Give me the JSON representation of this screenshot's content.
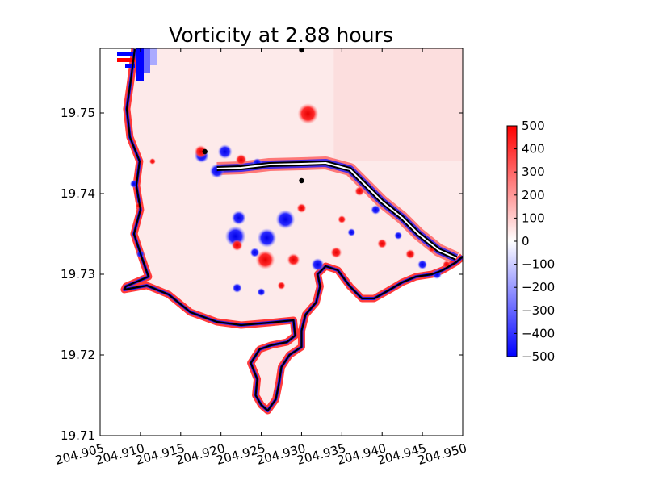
{
  "chart_data": {
    "type": "heatmap",
    "title": "Vorticity at 2.88 hours",
    "xlabel": "",
    "ylabel": "",
    "xlim": [
      204.905,
      204.95
    ],
    "ylim": [
      19.71,
      19.758
    ],
    "x_ticks": [
      "204.905",
      "204.910",
      "204.915",
      "204.920",
      "204.925",
      "204.930",
      "204.935",
      "204.940",
      "204.945",
      "204.950"
    ],
    "x_tick_values": [
      204.905,
      204.91,
      204.915,
      204.92,
      204.925,
      204.93,
      204.935,
      204.94,
      204.945,
      204.95
    ],
    "y_ticks": [
      "19.71",
      "19.72",
      "19.73",
      "19.74",
      "19.75"
    ],
    "y_tick_values": [
      19.71,
      19.72,
      19.73,
      19.74,
      19.75
    ],
    "colorbar": {
      "min": -500,
      "max": 500,
      "ticks": [
        "500",
        "400",
        "300",
        "200",
        "100",
        "0",
        "−100",
        "−200",
        "−300",
        "−400",
        "−500"
      ],
      "tick_values": [
        500,
        400,
        300,
        200,
        100,
        0,
        -100,
        -200,
        -300,
        -400,
        -500
      ],
      "colormap": [
        "#0000ff",
        "#ffffff",
        "#ff0000"
      ]
    },
    "markers": [
      {
        "x": 204.93,
        "y": 19.7578
      },
      {
        "x": 204.918,
        "y": 19.7452
      },
      {
        "x": 204.93,
        "y": 19.7416
      }
    ],
    "vortices": [
      {
        "x": 204.9308,
        "y": 19.7499,
        "sign": 1,
        "r": 0.0013
      },
      {
        "x": 204.9176,
        "y": 19.7447,
        "sign": -1,
        "r": 0.0009
      },
      {
        "x": 204.9175,
        "y": 19.7452,
        "sign": 1,
        "r": 0.0008
      },
      {
        "x": 204.9205,
        "y": 19.7452,
        "sign": -1,
        "r": 0.0009
      },
      {
        "x": 204.9195,
        "y": 19.7428,
        "sign": -1,
        "r": 0.0009
      },
      {
        "x": 204.9225,
        "y": 19.7442,
        "sign": 1,
        "r": 0.0007
      },
      {
        "x": 204.9245,
        "y": 19.7438,
        "sign": -1,
        "r": 0.0006
      },
      {
        "x": 204.9222,
        "y": 19.737,
        "sign": -1,
        "r": 0.0009
      },
      {
        "x": 204.9257,
        "y": 19.7345,
        "sign": -1,
        "r": 0.0012
      },
      {
        "x": 204.928,
        "y": 19.7368,
        "sign": -1,
        "r": 0.0012
      },
      {
        "x": 204.93,
        "y": 19.7382,
        "sign": 1,
        "r": 0.0006
      },
      {
        "x": 204.9218,
        "y": 19.7347,
        "sign": -1,
        "r": 0.0013
      },
      {
        "x": 204.922,
        "y": 19.7336,
        "sign": 1,
        "r": 0.0007
      },
      {
        "x": 204.9242,
        "y": 19.7327,
        "sign": -1,
        "r": 0.0006
      },
      {
        "x": 204.9255,
        "y": 19.7318,
        "sign": 1,
        "r": 0.0012
      },
      {
        "x": 204.929,
        "y": 19.7318,
        "sign": 1,
        "r": 0.0008
      },
      {
        "x": 204.932,
        "y": 19.7312,
        "sign": -1,
        "r": 0.0008
      },
      {
        "x": 204.9343,
        "y": 19.7327,
        "sign": 1,
        "r": 0.0007
      },
      {
        "x": 204.922,
        "y": 19.7283,
        "sign": -1,
        "r": 0.0006
      },
      {
        "x": 204.925,
        "y": 19.7278,
        "sign": -1,
        "r": 0.0005
      },
      {
        "x": 204.9275,
        "y": 19.7286,
        "sign": 1,
        "r": 0.0005
      },
      {
        "x": 204.91,
        "y": 19.7325,
        "sign": -1,
        "r": 0.0005
      },
      {
        "x": 204.9092,
        "y": 19.7412,
        "sign": -1,
        "r": 0.0005
      },
      {
        "x": 204.9098,
        "y": 19.7385,
        "sign": 1,
        "r": 0.0004
      },
      {
        "x": 204.9115,
        "y": 19.744,
        "sign": 1,
        "r": 0.0004
      },
      {
        "x": 204.9372,
        "y": 19.7403,
        "sign": 1,
        "r": 0.0006
      },
      {
        "x": 204.9392,
        "y": 19.738,
        "sign": -1,
        "r": 0.0006
      },
      {
        "x": 204.94,
        "y": 19.7338,
        "sign": 1,
        "r": 0.0006
      },
      {
        "x": 204.942,
        "y": 19.7348,
        "sign": -1,
        "r": 0.0005
      },
      {
        "x": 204.9435,
        "y": 19.7325,
        "sign": 1,
        "r": 0.0006
      },
      {
        "x": 204.945,
        "y": 19.7312,
        "sign": -1,
        "r": 0.0006
      },
      {
        "x": 204.9462,
        "y": 19.7332,
        "sign": 1,
        "r": 0.0005
      },
      {
        "x": 204.9468,
        "y": 19.73,
        "sign": -1,
        "r": 0.0006
      },
      {
        "x": 204.948,
        "y": 19.7312,
        "sign": 1,
        "r": 0.0005
      },
      {
        "x": 204.9362,
        "y": 19.7352,
        "sign": -1,
        "r": 0.0005
      },
      {
        "x": 204.935,
        "y": 19.7368,
        "sign": 1,
        "r": 0.0005
      }
    ],
    "coastline": [
      [
        204.9093,
        19.7579
      ],
      [
        204.9088,
        19.754
      ],
      [
        204.9083,
        19.7505
      ],
      [
        204.9087,
        19.747
      ],
      [
        204.9099,
        19.744
      ],
      [
        204.9095,
        19.741
      ],
      [
        204.91,
        19.738
      ],
      [
        204.9092,
        19.735
      ],
      [
        204.9102,
        19.732
      ],
      [
        204.911,
        19.7297
      ],
      [
        204.9082,
        19.7285
      ],
      [
        204.908,
        19.7281
      ],
      [
        204.9108,
        19.7286
      ],
      [
        204.9135,
        19.7275
      ],
      [
        204.9162,
        19.7253
      ],
      [
        204.9195,
        19.7241
      ],
      [
        204.9225,
        19.7237
      ],
      [
        204.926,
        19.724
      ],
      [
        204.929,
        19.7243
      ],
      [
        204.9292,
        19.7224
      ],
      [
        204.9282,
        19.7216
      ],
      [
        204.9262,
        19.7212
      ],
      [
        204.9248,
        19.7207
      ],
      [
        204.9237,
        19.719
      ],
      [
        204.9245,
        19.717
      ],
      [
        204.9243,
        19.715
      ],
      [
        204.925,
        19.7138
      ],
      [
        204.9258,
        19.7131
      ],
      [
        204.9268,
        19.7145
      ],
      [
        204.9272,
        19.7165
      ],
      [
        204.9275,
        19.7185
      ],
      [
        204.9285,
        19.72
      ],
      [
        204.93,
        19.721
      ],
      [
        204.93,
        19.723
      ],
      [
        204.9305,
        19.725
      ],
      [
        204.9318,
        19.7265
      ],
      [
        204.9323,
        19.7285
      ],
      [
        204.932,
        19.73
      ],
      [
        204.933,
        19.731
      ],
      [
        204.9345,
        19.7305
      ],
      [
        204.936,
        19.7285
      ],
      [
        204.9375,
        19.727
      ],
      [
        204.939,
        19.727
      ],
      [
        204.9408,
        19.728
      ],
      [
        204.9425,
        19.729
      ],
      [
        204.9442,
        19.7297
      ],
      [
        204.9462,
        19.73
      ],
      [
        204.9475,
        19.7305
      ],
      [
        204.9492,
        19.7315
      ],
      [
        204.95,
        19.7322
      ]
    ],
    "pier": [
      [
        204.9195,
        19.7431
      ],
      [
        204.9225,
        19.7432
      ],
      [
        204.926,
        19.7436
      ],
      [
        204.93,
        19.7437
      ],
      [
        204.933,
        19.7438
      ],
      [
        204.936,
        19.743
      ],
      [
        204.938,
        19.741
      ],
      [
        204.94,
        19.739
      ],
      [
        204.9425,
        19.737
      ],
      [
        204.9445,
        19.735
      ],
      [
        204.947,
        19.733
      ],
      [
        204.9492,
        19.732
      ]
    ]
  }
}
